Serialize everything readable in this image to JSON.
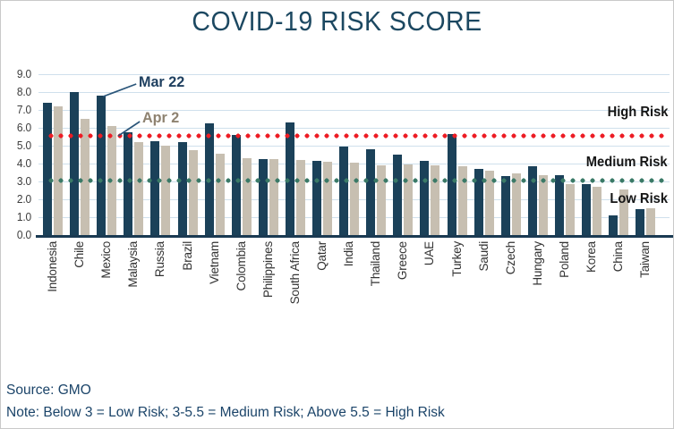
{
  "chart_data": {
    "type": "bar",
    "title": "COVID-19 RISK SCORE",
    "categories": [
      "Indonesia",
      "Chile",
      "Mexico",
      "Malaysia",
      "Russia",
      "Brazil",
      "Vietnam",
      "Colombia",
      "Philippines",
      "South Africa",
      "Qatar",
      "India",
      "Thailand",
      "Greece",
      "UAE",
      "Turkey",
      "Saudi",
      "Czech",
      "Hungary",
      "Poland",
      "Korea",
      "China",
      "Taiwan"
    ],
    "series": [
      {
        "name": "Mar 22",
        "color": "#1b4159",
        "values": [
          7.4,
          8.0,
          7.8,
          5.75,
          5.25,
          5.2,
          6.25,
          5.6,
          4.25,
          6.3,
          4.15,
          4.95,
          4.8,
          4.5,
          4.15,
          5.65,
          3.7,
          3.3,
          3.85,
          3.35,
          2.85,
          1.1,
          1.45
        ]
      },
      {
        "name": "Apr 2",
        "color": "#c7bfb1",
        "values": [
          7.2,
          6.5,
          6.1,
          5.2,
          5.0,
          4.75,
          4.55,
          4.3,
          4.25,
          4.2,
          4.1,
          4.05,
          3.9,
          3.95,
          3.9,
          3.85,
          3.6,
          3.45,
          3.35,
          2.85,
          2.7,
          2.55,
          1.5
        ]
      }
    ],
    "ylim": [
      0,
      9
    ],
    "ytick_step": 1,
    "yticks": [
      "0.0",
      "1.0",
      "2.0",
      "3.0",
      "4.0",
      "5.0",
      "6.0",
      "7.0",
      "8.0",
      "9.0"
    ],
    "grid": true,
    "reference_lines": [
      {
        "value": 5.5,
        "color": "#ed1c24",
        "style": "dotted",
        "meaning": "High Risk threshold"
      },
      {
        "value": 3.0,
        "color": "#3a7a67",
        "style": "dotted",
        "meaning": "Low Risk threshold"
      }
    ],
    "risk_labels": [
      {
        "text": "High Risk",
        "y_value": 6.8
      },
      {
        "text": "Medium Risk",
        "y_value": 4.0
      },
      {
        "text": "Low Risk",
        "y_value": 1.95
      }
    ],
    "annotations": [
      {
        "text": "Mar 22",
        "color": "#1e3f5f",
        "points_to": "Mexico Mar 22 bar"
      },
      {
        "text": "Apr 2",
        "color": "#8e8270",
        "points_to": "Mexico Apr 2 bar"
      }
    ]
  },
  "colors": {
    "title": "#1c4861",
    "gridline": "#cfe0ec",
    "axis": "#1a3a52",
    "ytick": "#3c3c3c",
    "xlabel": "#333333",
    "risk_label": "#151515",
    "footer": "#1b4469",
    "callout_line": "#2b567a"
  },
  "footer": {
    "source": "Source: GMO",
    "note": "Note: Below 3 = Low Risk; 3-5.5 = Medium Risk; Above 5.5 = High Risk"
  }
}
